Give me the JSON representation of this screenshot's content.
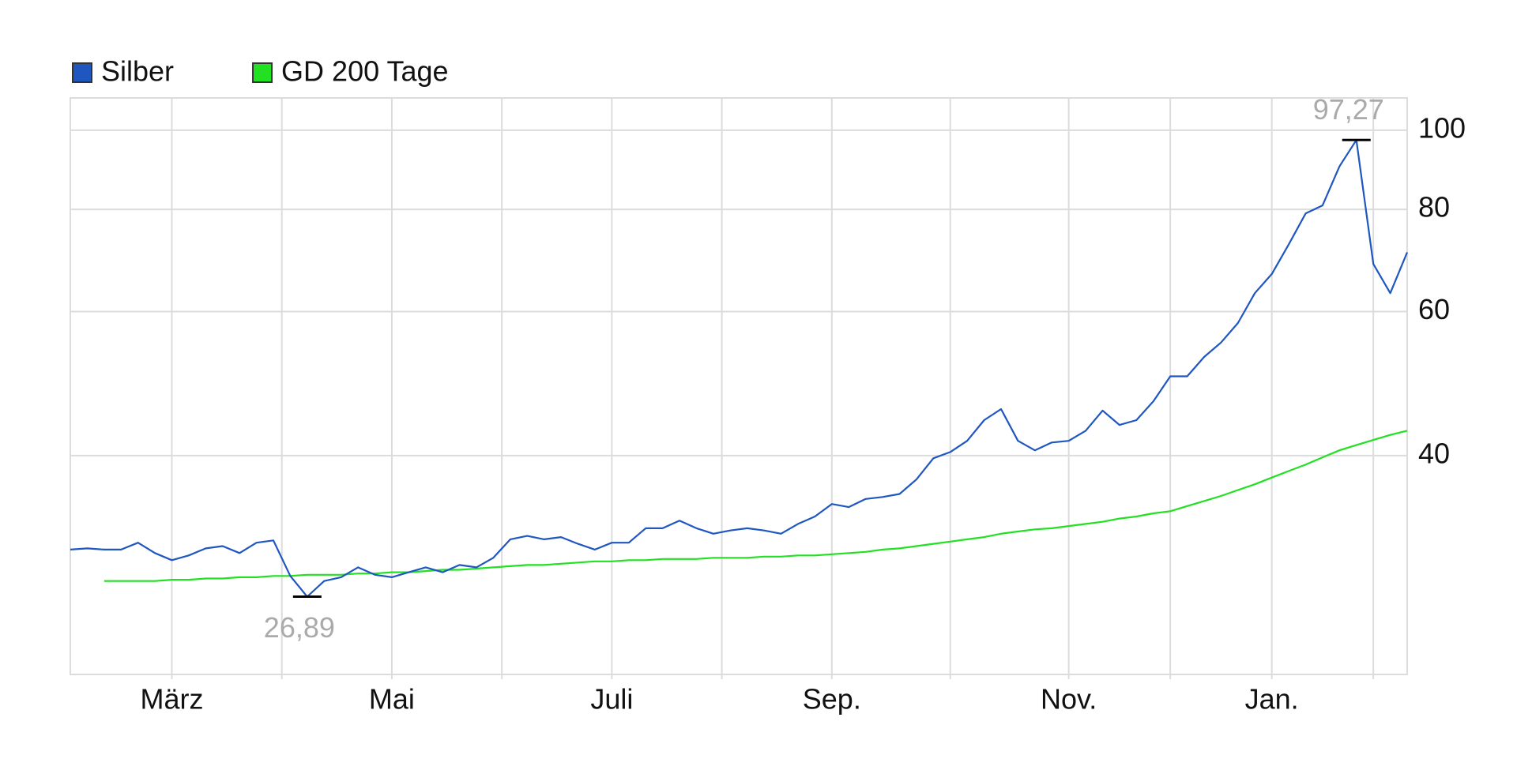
{
  "chart_data": {
    "type": "line",
    "log_scale": true,
    "grid": true,
    "legend_position": "top-left",
    "categories": [
      null,
      null,
      null,
      null,
      null,
      null,
      "März",
      null,
      null,
      null,
      null,
      null,
      null,
      null,
      null,
      null,
      null,
      null,
      null,
      "Mai",
      null,
      null,
      null,
      null,
      null,
      null,
      null,
      null,
      null,
      null,
      null,
      null,
      "Juli",
      null,
      null,
      null,
      null,
      null,
      null,
      null,
      null,
      null,
      null,
      null,
      null,
      "Sep.",
      null,
      null,
      null,
      null,
      null,
      null,
      null,
      null,
      null,
      null,
      null,
      null,
      null,
      "Nov.",
      null,
      null,
      null,
      null,
      null,
      null,
      null,
      null,
      null,
      null,
      null,
      "Jan.",
      null,
      null,
      null,
      null,
      null,
      null,
      null,
      null
    ],
    "ylim": [
      21.6,
      109.5
    ],
    "yticks": [
      40,
      60,
      80,
      100
    ],
    "series": [
      {
        "name": "Silber",
        "color": "#1f56c0",
        "values": [
          30.7,
          30.8,
          30.7,
          30.7,
          31.3,
          30.4,
          29.8,
          30.2,
          30.8,
          31.0,
          30.4,
          31.3,
          31.5,
          28.5,
          26.89,
          28.1,
          28.4,
          29.2,
          28.6,
          28.4,
          28.8,
          29.2,
          28.8,
          29.4,
          29.2,
          30.0,
          31.6,
          31.9,
          31.6,
          31.8,
          31.2,
          30.7,
          31.3,
          31.3,
          32.6,
          32.6,
          33.3,
          32.6,
          32.1,
          32.4,
          32.6,
          32.4,
          32.1,
          33.0,
          33.7,
          34.9,
          34.6,
          35.4,
          35.6,
          35.9,
          37.4,
          39.7,
          40.4,
          41.7,
          44.2,
          45.6,
          41.7,
          40.6,
          41.5,
          41.7,
          42.9,
          45.4,
          43.6,
          44.2,
          46.6,
          50.0,
          50.0,
          52.8,
          55.0,
          58.1,
          63.2,
          66.7,
          72.5,
          79.1,
          80.9,
          90.3,
          97.27,
          68.6,
          63.2,
          70.9
        ],
        "value_labels": [
          null,
          null,
          null,
          null,
          null,
          null,
          null,
          null,
          null,
          null,
          null,
          null,
          null,
          null,
          "26,89",
          null,
          null,
          null,
          null,
          null,
          null,
          null,
          null,
          null,
          null,
          null,
          null,
          null,
          null,
          null,
          null,
          null,
          null,
          null,
          null,
          null,
          null,
          null,
          null,
          null,
          null,
          null,
          null,
          null,
          null,
          null,
          null,
          null,
          null,
          null,
          null,
          null,
          null,
          null,
          null,
          null,
          null,
          null,
          null,
          null,
          null,
          null,
          null,
          null,
          null,
          null,
          null,
          null,
          null,
          null,
          null,
          null,
          null,
          null,
          null,
          null,
          "97,27",
          null,
          null,
          null
        ]
      },
      {
        "name": "GD 200 Tage",
        "color": "#22e022",
        "values": [
          null,
          null,
          28.1,
          28.1,
          28.1,
          28.1,
          28.2,
          28.2,
          28.3,
          28.3,
          28.4,
          28.4,
          28.5,
          28.5,
          28.6,
          28.6,
          28.6,
          28.7,
          28.7,
          28.8,
          28.8,
          28.9,
          29.0,
          29.0,
          29.1,
          29.2,
          29.3,
          29.4,
          29.4,
          29.5,
          29.6,
          29.7,
          29.7,
          29.8,
          29.8,
          29.9,
          29.9,
          29.9,
          30.0,
          30.0,
          30.0,
          30.1,
          30.1,
          30.2,
          30.2,
          30.3,
          30.4,
          30.5,
          30.7,
          30.8,
          31.0,
          31.2,
          31.4,
          31.6,
          31.8,
          32.1,
          32.3,
          32.5,
          32.6,
          32.8,
          33.0,
          33.2,
          33.5,
          33.7,
          34.0,
          34.2,
          34.7,
          35.2,
          35.7,
          36.3,
          36.9,
          37.6,
          38.3,
          39.0,
          39.8,
          40.6,
          41.2,
          41.8,
          42.4,
          42.9
        ]
      }
    ]
  }
}
